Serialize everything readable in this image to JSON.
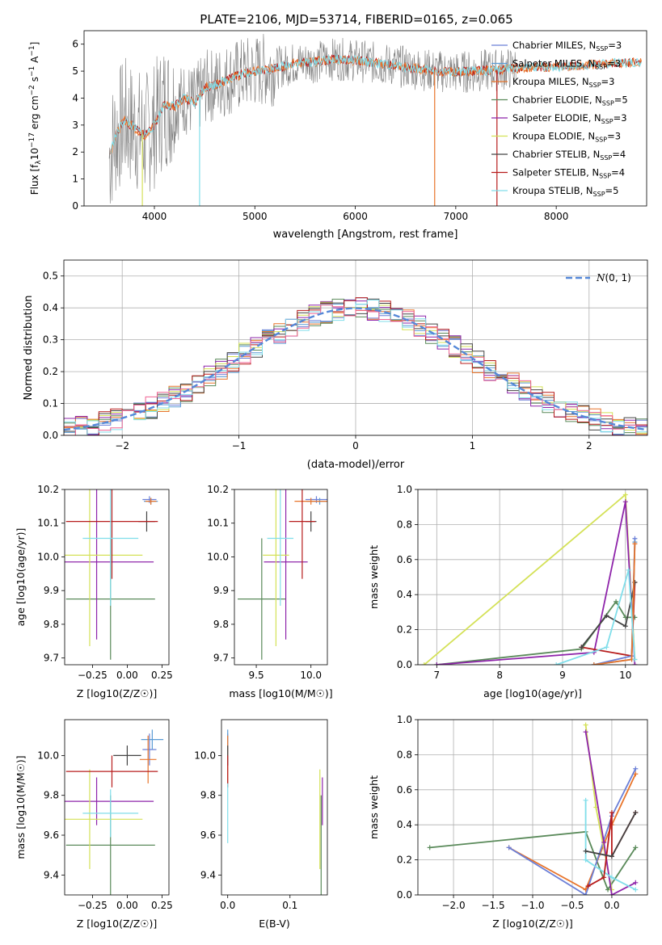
{
  "figure_title": "PLATE=2106, MJD=53714, FIBERID=0165, z=0.065",
  "colors": {
    "chabrier_miles": "#6b7fd7",
    "salpeter_miles": "#5a9bd5",
    "kroupa_miles": "#e8742a",
    "chabrier_elodie": "#5a8a5a",
    "salpeter_elodie": "#8e24aa",
    "kroupa_elodie": "#d4e157",
    "chabrier_stelib": "#444444",
    "salpeter_stelib": "#b71c1c",
    "kroupa_stelib": "#80deea",
    "gauss": "#5588d8",
    "pink": "#f06292",
    "grey_spec": "#7f7f7f"
  },
  "chart_data": [
    {
      "id": "spectrum",
      "type": "line",
      "title": "PLATE=2106, MJD=53714, FIBERID=0165, z=0.065",
      "xlabel": "wavelength [Angstrom, rest frame]",
      "ylabel": "Flux [f$_\\lambda$10$^{-17}$ erg cm$^{-2}$ s$^{-1}$ A$^{-1}$]",
      "ylabel_parts": [
        "Flux [f",
        "λ",
        "10",
        "−17",
        " erg cm",
        "−2",
        " s",
        "−1",
        " A",
        "−1",
        "]"
      ],
      "xlim": [
        3300,
        8900
      ],
      "ylim": [
        0,
        6.5
      ],
      "xticks": [
        4000,
        5000,
        6000,
        7000,
        8000
      ],
      "yticks": [
        0,
        1,
        2,
        3,
        4,
        5,
        6
      ],
      "legend_position": "top-right",
      "legend": [
        {
          "base": "Chabrier MILES, N",
          "sub": "SSP",
          "suffix": "=3"
        },
        {
          "base": "Salpeter MILES, N",
          "sub": "SSP",
          "suffix": "=3"
        },
        {
          "base": "Kroupa MILES, N",
          "sub": "SSP",
          "suffix": "=3"
        },
        {
          "base": "Chabrier ELODIE, N",
          "sub": "SSP",
          "suffix": "=5"
        },
        {
          "base": "Salpeter ELODIE, N",
          "sub": "SSP",
          "suffix": "=3"
        },
        {
          "base": "Kroupa ELODIE, N",
          "sub": "SSP",
          "suffix": "=3"
        },
        {
          "base": "Chabrier STELIB, N",
          "sub": "SSP",
          "suffix": "=4"
        },
        {
          "base": "Salpeter STELIB, N",
          "sub": "SSP",
          "suffix": "=4"
        },
        {
          "base": "Kroupa STELIB, N",
          "sub": "SSP",
          "suffix": "=5"
        }
      ],
      "continuum": {
        "x": [
          3550,
          3600,
          3700,
          3800,
          3900,
          4000,
          4100,
          4200,
          4300,
          4400,
          4500,
          4600,
          4800,
          5000,
          5200,
          5400,
          5600,
          5800,
          6000,
          6200,
          6400,
          6600,
          6800,
          7000,
          7200,
          7400,
          7600,
          7800,
          8000,
          8200,
          8400,
          8600,
          8850
        ],
        "y": [
          1.8,
          2.5,
          3.2,
          2.9,
          2.6,
          3.0,
          3.8,
          3.7,
          4.0,
          3.8,
          4.4,
          4.5,
          4.8,
          5.0,
          5.1,
          5.3,
          5.35,
          5.45,
          5.4,
          5.3,
          5.2,
          5.1,
          5.0,
          4.95,
          5.0,
          5.05,
          5.1,
          5.15,
          5.15,
          5.2,
          5.25,
          5.3,
          5.35
        ]
      }
    },
    {
      "id": "residuals",
      "type": "histogram",
      "xlabel": "(data-model)/error",
      "ylabel": "Normed distribution",
      "xlim": [
        -2.5,
        2.5
      ],
      "ylim": [
        0,
        0.55
      ],
      "xticks": [
        -2,
        -1,
        0,
        1,
        2
      ],
      "yticks": [
        0.0,
        0.1,
        0.2,
        0.3,
        0.4,
        0.5
      ],
      "grid": true,
      "legend_position": "top-right",
      "legend": [
        "N(0, 1)"
      ],
      "gaussian": {
        "mean": 0,
        "sigma": 1
      }
    },
    {
      "id": "age_vs_Z",
      "type": "errorbar",
      "xlabel": "Z [log10(Z/Z☉)]",
      "ylabel": "age  [log10(age/yr)]",
      "xlim": [
        -0.45,
        0.3
      ],
      "ylim": [
        9.68,
        10.2
      ],
      "xticks": [
        -0.25,
        0.0,
        0.25
      ],
      "yticks": [
        9.7,
        9.8,
        9.9,
        10.0,
        10.1,
        10.2
      ],
      "series": [
        {
          "name": "Chabrier MILES",
          "x": 0.16,
          "y": 10.17,
          "xerr": 0.05,
          "yerr": 0.01
        },
        {
          "name": "Salpeter MILES",
          "x": 0.17,
          "y": 10.165,
          "xerr": 0.05,
          "yerr": 0.01
        },
        {
          "name": "Kroupa MILES",
          "x": 0.17,
          "y": 10.165,
          "xerr": 0.04,
          "yerr": 0.01
        },
        {
          "name": "Chabrier ELODIE",
          "x": -0.12,
          "y": 9.875,
          "xerr": 0.32,
          "yerr": 0.18
        },
        {
          "name": "Salpeter ELODIE",
          "x": -0.22,
          "y": 9.985,
          "xerr": 0.41,
          "yerr": 0.23
        },
        {
          "name": "Kroupa ELODIE",
          "x": -0.27,
          "y": 10.005,
          "xerr": 0.38,
          "yerr": 0.27
        },
        {
          "name": "Chabrier STELIB",
          "x": 0.14,
          "y": 10.105,
          "xerr": 0.06,
          "yerr": 0.03
        },
        {
          "name": "Salpeter STELIB",
          "x": -0.11,
          "y": 10.105,
          "xerr": 0.33,
          "yerr": 0.17
        },
        {
          "name": "Kroupa STELIB",
          "x": -0.12,
          "y": 10.055,
          "xerr": 0.2,
          "yerr": 0.2
        }
      ]
    },
    {
      "id": "age_vs_mass",
      "type": "errorbar",
      "xlabel": "mass [log10(M/M☉)]",
      "xlim": [
        9.3,
        10.15
      ],
      "ylim": [
        9.68,
        10.2
      ],
      "xticks": [
        9.5,
        10.0
      ],
      "yticks": [
        9.7,
        9.8,
        9.9,
        10.0,
        10.1,
        10.2
      ],
      "series": [
        {
          "name": "Chabrier MILES",
          "x": 10.05,
          "y": 10.17,
          "xerr": 0.1,
          "yerr": 0.01
        },
        {
          "name": "Salpeter MILES",
          "x": 10.08,
          "y": 10.165,
          "xerr": 0.12,
          "yerr": 0.01
        },
        {
          "name": "Kroupa MILES",
          "x": 10.0,
          "y": 10.165,
          "xerr": 0.15,
          "yerr": 0.01
        },
        {
          "name": "Chabrier ELODIE",
          "x": 9.55,
          "y": 9.875,
          "xerr": 0.22,
          "yerr": 0.18
        },
        {
          "name": "Salpeter ELODIE",
          "x": 9.77,
          "y": 9.985,
          "xerr": 0.2,
          "yerr": 0.23
        },
        {
          "name": "Kroupa ELODIE",
          "x": 9.68,
          "y": 10.005,
          "xerr": 0.12,
          "yerr": 0.27
        },
        {
          "name": "Chabrier STELIB",
          "x": 10.0,
          "y": 10.105,
          "xerr": 0.05,
          "yerr": 0.03
        },
        {
          "name": "Salpeter STELIB",
          "x": 9.92,
          "y": 10.105,
          "xerr": 0.12,
          "yerr": 0.17
        },
        {
          "name": "Kroupa STELIB",
          "x": 9.72,
          "y": 10.055,
          "xerr": 0.12,
          "yerr": 0.2
        }
      ]
    },
    {
      "id": "massweight_vs_age",
      "type": "line",
      "xlabel": "age  [log10(age/yr)]",
      "ylabel": "mass weight",
      "xlim": [
        6.7,
        10.35
      ],
      "ylim": [
        0,
        1.0
      ],
      "xticks": [
        7,
        8,
        9,
        10
      ],
      "yticks": [
        0.0,
        0.2,
        0.4,
        0.6,
        0.8,
        1.0
      ],
      "grid": true,
      "series": [
        {
          "name": "Kroupa ELODIE",
          "x": [
            6.8,
            10.0,
            10.15
          ],
          "y": [
            0.0,
            0.97,
            0.03
          ]
        },
        {
          "name": "Chabrier ELODIE",
          "x": [
            7.0,
            9.3,
            9.85,
            10.0,
            10.15
          ],
          "y": [
            0.0,
            0.09,
            0.36,
            0.27,
            0.27
          ]
        },
        {
          "name": "Salpeter ELODIE",
          "x": [
            7.0,
            9.5,
            10.0,
            10.15
          ],
          "y": [
            0.0,
            0.07,
            0.93,
            0.0
          ]
        },
        {
          "name": "Salpeter STELIB",
          "x": [
            9.3,
            10.1,
            10.15
          ],
          "y": [
            0.1,
            0.05,
            0.47
          ]
        },
        {
          "name": "Chabrier STELIB",
          "x": [
            9.3,
            9.7,
            10.0,
            10.15
          ],
          "y": [
            0.1,
            0.28,
            0.22,
            0.47
          ]
        },
        {
          "name": "Chabrier MILES",
          "x": [
            9.5,
            10.1,
            10.15
          ],
          "y": [
            0.0,
            0.05,
            0.72
          ]
        },
        {
          "name": "Salpeter MILES",
          "x": [
            9.5,
            10.1,
            10.15
          ],
          "y": [
            0.0,
            0.03,
            0.7
          ]
        },
        {
          "name": "Kroupa MILES",
          "x": [
            9.5,
            10.1,
            10.15
          ],
          "y": [
            0.0,
            0.03,
            0.69
          ]
        },
        {
          "name": "Kroupa STELIB",
          "x": [
            8.9,
            9.7,
            10.05,
            10.15
          ],
          "y": [
            0.0,
            0.1,
            0.54,
            0.03
          ]
        }
      ]
    },
    {
      "id": "mass_vs_Z",
      "type": "errorbar",
      "xlabel": "Z [log10(Z/Z☉)]",
      "ylabel": "mass [log10(M/M☉)]",
      "xlim": [
        -0.45,
        0.3
      ],
      "ylim": [
        9.3,
        10.18
      ],
      "xticks": [
        -0.25,
        0.0,
        0.25
      ],
      "yticks": [
        9.4,
        9.6,
        9.8,
        10.0
      ],
      "series": [
        {
          "name": "Chabrier MILES",
          "x": 0.16,
          "y": 10.03,
          "xerr": 0.05,
          "yerr": 0.08
        },
        {
          "name": "Salpeter MILES",
          "x": 0.18,
          "y": 10.08,
          "xerr": 0.08,
          "yerr": 0.05
        },
        {
          "name": "Kroupa MILES",
          "x": 0.15,
          "y": 9.98,
          "xerr": 0.06,
          "yerr": 0.12
        },
        {
          "name": "Chabrier ELODIE",
          "x": -0.12,
          "y": 9.55,
          "xerr": 0.32,
          "yerr": 0.25
        },
        {
          "name": "Salpeter ELODIE",
          "x": -0.22,
          "y": 9.77,
          "xerr": 0.41,
          "yerr": 0.12
        },
        {
          "name": "Kroupa ELODIE",
          "x": -0.27,
          "y": 9.68,
          "xerr": 0.38,
          "yerr": 0.25
        },
        {
          "name": "Chabrier STELIB",
          "x": 0.0,
          "y": 10.0,
          "xerr": 0.1,
          "yerr": 0.05
        },
        {
          "name": "Salpeter STELIB",
          "x": -0.11,
          "y": 9.92,
          "xerr": 0.33,
          "yerr": 0.08
        },
        {
          "name": "Kroupa STELIB",
          "x": -0.12,
          "y": 9.71,
          "xerr": 0.2,
          "yerr": 0.12
        }
      ]
    },
    {
      "id": "mass_vs_ebv",
      "type": "errorbar",
      "xlabel": "E(B-V)",
      "xlim": [
        -0.01,
        0.16
      ],
      "ylim": [
        9.3,
        10.18
      ],
      "xticks": [
        0.0,
        0.1
      ],
      "yticks": [
        9.4,
        9.6,
        9.8,
        10.0
      ],
      "series": [
        {
          "name": "Chabrier MILES",
          "x": 0.0,
          "y": 10.03,
          "xerr": 0,
          "yerr": 0.08
        },
        {
          "name": "Salpeter MILES",
          "x": 0.0,
          "y": 10.08,
          "xerr": 0,
          "yerr": 0.05
        },
        {
          "name": "Kroupa MILES",
          "x": 0.0,
          "y": 9.98,
          "xerr": 0,
          "yerr": 0.12
        },
        {
          "name": "Chabrier ELODIE",
          "x": 0.15,
          "y": 9.55,
          "xerr": 0,
          "yerr": 0.25
        },
        {
          "name": "Salpeter ELODIE",
          "x": 0.152,
          "y": 9.77,
          "xerr": 0,
          "yerr": 0.12
        },
        {
          "name": "Kroupa ELODIE",
          "x": 0.148,
          "y": 9.68,
          "xerr": 0,
          "yerr": 0.25
        },
        {
          "name": "Chabrier STELIB",
          "x": 0.0,
          "y": 10.0,
          "xerr": 0,
          "yerr": 0.05
        },
        {
          "name": "Salpeter STELIB",
          "x": 0.0,
          "y": 9.92,
          "xerr": 0,
          "yerr": 0.08
        },
        {
          "name": "Kroupa STELIB",
          "x": 0.0,
          "y": 9.71,
          "xerr": 0,
          "yerr": 0.15
        }
      ]
    },
    {
      "id": "massweight_vs_Z",
      "type": "line",
      "xlabel": "Z [log10(Z/Z☉)]",
      "ylabel": "mass weight",
      "xlim": [
        -2.45,
        0.45
      ],
      "ylim": [
        0,
        1.0
      ],
      "xticks": [
        -2.0,
        -1.5,
        -1.0,
        -0.5,
        0.0
      ],
      "yticks": [
        0.0,
        0.2,
        0.4,
        0.6,
        0.8,
        1.0
      ],
      "grid": true,
      "series": [
        {
          "name": "Chabrier ELODIE",
          "x": [
            -2.3,
            -0.33,
            -0.05,
            0.3
          ],
          "y": [
            0.27,
            0.36,
            0.03,
            0.27
          ]
        },
        {
          "name": "Kroupa MILES",
          "x": [
            -1.3,
            -0.33,
            0.0,
            0.3
          ],
          "y": [
            0.27,
            0.03,
            0.4,
            0.69
          ]
        },
        {
          "name": "Chabrier MILES",
          "x": [
            -1.3,
            -0.33,
            0.0,
            0.3
          ],
          "y": [
            0.27,
            0.0,
            0.45,
            0.72
          ]
        },
        {
          "name": "Kroupa ELODIE",
          "x": [
            -0.33,
            -0.2,
            0.0
          ],
          "y": [
            0.97,
            0.5,
            0.03
          ]
        },
        {
          "name": "Salpeter ELODIE",
          "x": [
            -0.33,
            -0.1,
            0.0,
            0.3
          ],
          "y": [
            0.93,
            0.3,
            0.0,
            0.07
          ]
        },
        {
          "name": "Kroupa STELIB",
          "x": [
            -0.33,
            -0.33,
            0.0,
            0.3
          ],
          "y": [
            0.54,
            0.2,
            0.1,
            0.03
          ]
        },
        {
          "name": "Salpeter STELIB",
          "x": [
            -0.3,
            -0.1,
            0.0,
            0.0,
            0.3
          ],
          "y": [
            0.05,
            0.1,
            0.47,
            0.22,
            0.47
          ]
        },
        {
          "name": "Chabrier STELIB",
          "x": [
            -0.33,
            0.0,
            0.3
          ],
          "y": [
            0.25,
            0.22,
            0.47
          ]
        }
      ]
    }
  ]
}
